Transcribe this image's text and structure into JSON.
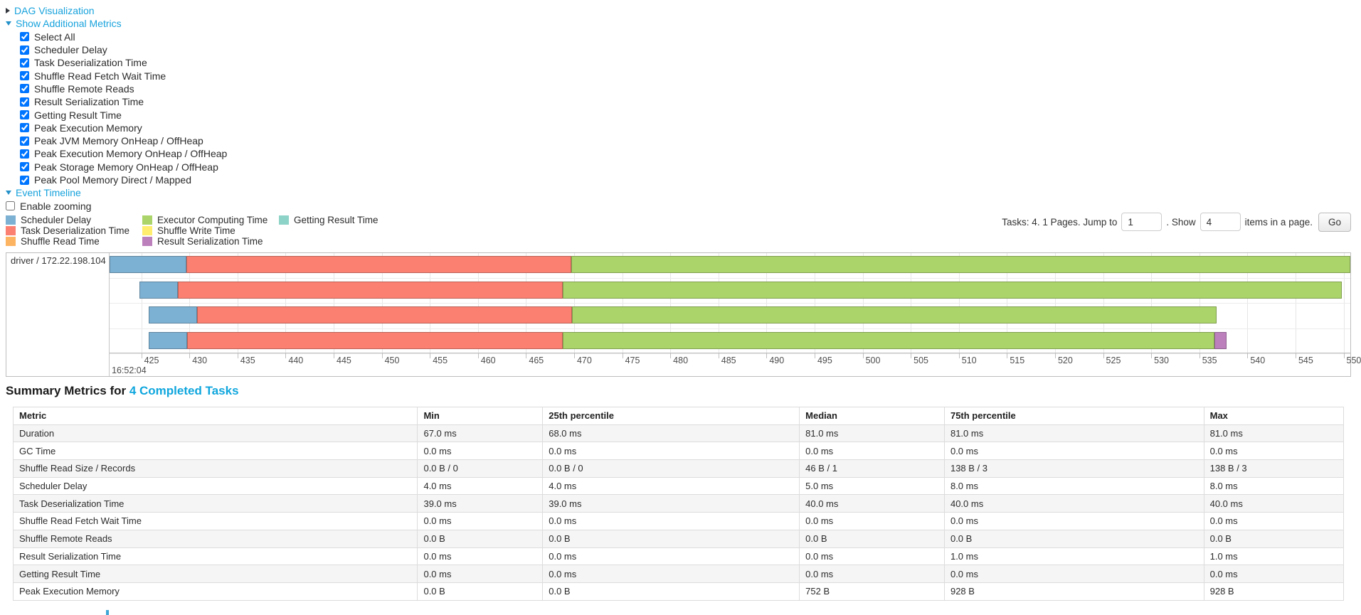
{
  "sections": {
    "dag": {
      "label": "DAG Visualization",
      "state": "collapsed"
    },
    "additional_metrics": {
      "label": "Show Additional Metrics",
      "state": "expanded",
      "checkboxes": [
        {
          "label": "Select All",
          "checked": true
        },
        {
          "label": "Scheduler Delay",
          "checked": true
        },
        {
          "label": "Task Deserialization Time",
          "checked": true
        },
        {
          "label": "Shuffle Read Fetch Wait Time",
          "checked": true
        },
        {
          "label": "Shuffle Remote Reads",
          "checked": true
        },
        {
          "label": "Result Serialization Time",
          "checked": true
        },
        {
          "label": "Getting Result Time",
          "checked": true
        },
        {
          "label": "Peak Execution Memory",
          "checked": true
        },
        {
          "label": "Peak JVM Memory OnHeap / OffHeap",
          "checked": true
        },
        {
          "label": "Peak Execution Memory OnHeap / OffHeap",
          "checked": true
        },
        {
          "label": "Peak Storage Memory OnHeap / OffHeap",
          "checked": true
        },
        {
          "label": "Peak Pool Memory Direct / Mapped",
          "checked": true
        }
      ]
    },
    "event_timeline": {
      "label": "Event Timeline",
      "state": "expanded",
      "enable_zooming": {
        "label": "Enable zooming",
        "checked": false
      }
    }
  },
  "legend": {
    "columns": [
      [
        {
          "label": "Scheduler Delay",
          "key": "scheduler_delay"
        },
        {
          "label": "Task Deserialization Time",
          "key": "task_deserialization"
        },
        {
          "label": "Shuffle Read Time",
          "key": "shuffle_read"
        }
      ],
      [
        {
          "label": "Executor Computing Time",
          "key": "executor_computing"
        },
        {
          "label": "Shuffle Write Time",
          "key": "shuffle_write"
        },
        {
          "label": "Result Serialization Time",
          "key": "result_serialization"
        }
      ],
      [
        {
          "label": "Getting Result Time",
          "key": "getting_result"
        }
      ]
    ]
  },
  "pagination": {
    "summary_text": "Tasks: 4. 1 Pages. Jump to",
    "jump_value": "1",
    "show_label": ". Show",
    "show_value": "4",
    "suffix_text": "items in a page.",
    "go_label": "Go"
  },
  "chart_data": {
    "type": "timeline",
    "group_label": "driver / 172.22.198.104",
    "time_of_day": "16:52:04",
    "x_unit": "ms within second 16:52:04",
    "x_domain": [
      421.7,
      550.7
    ],
    "tick_start": 425,
    "tick_end": 550,
    "tick_step": 5,
    "colors": {
      "scheduler_delay": "#7DB1D3",
      "task_deserialization": "#FB8072",
      "shuffle_read": "#FDB462",
      "executor_computing": "#ABD56A",
      "shuffle_write": "#FFED6F",
      "result_serialization": "#BC80BD",
      "getting_result": "#8DD3C7"
    },
    "tasks": [
      {
        "start": 421.7,
        "segments": [
          [
            "scheduler_delay",
            8.0
          ],
          [
            "task_deserialization",
            40.0
          ],
          [
            "executor_computing",
            81.0
          ]
        ]
      },
      {
        "start": 424.8,
        "segments": [
          [
            "scheduler_delay",
            4.0
          ],
          [
            "task_deserialization",
            40.0
          ],
          [
            "executor_computing",
            81.0
          ]
        ]
      },
      {
        "start": 425.8,
        "segments": [
          [
            "scheduler_delay",
            5.0
          ],
          [
            "task_deserialization",
            39.0
          ],
          [
            "executor_computing",
            67.0
          ]
        ]
      },
      {
        "start": 425.8,
        "segments": [
          [
            "scheduler_delay",
            4.0
          ],
          [
            "task_deserialization",
            39.0
          ],
          [
            "executor_computing",
            67.8
          ],
          [
            "result_serialization",
            1.2
          ]
        ]
      }
    ]
  },
  "summary_metrics": {
    "heading_prefix": "Summary Metrics for ",
    "heading_link": "4 Completed Tasks",
    "headers": [
      "Metric",
      "Min",
      "25th percentile",
      "Median",
      "75th percentile",
      "Max"
    ],
    "rows": [
      [
        "Duration",
        "67.0 ms",
        "68.0 ms",
        "81.0 ms",
        "81.0 ms",
        "81.0 ms"
      ],
      [
        "GC Time",
        "0.0 ms",
        "0.0 ms",
        "0.0 ms",
        "0.0 ms",
        "0.0 ms"
      ],
      [
        "Shuffle Read Size / Records",
        "0.0 B / 0",
        "0.0 B / 0",
        "46 B / 1",
        "138 B / 3",
        "138 B / 3"
      ],
      [
        "Scheduler Delay",
        "4.0 ms",
        "4.0 ms",
        "5.0 ms",
        "8.0 ms",
        "8.0 ms"
      ],
      [
        "Task Deserialization Time",
        "39.0 ms",
        "39.0 ms",
        "40.0 ms",
        "40.0 ms",
        "40.0 ms"
      ],
      [
        "Shuffle Read Fetch Wait Time",
        "0.0 ms",
        "0.0 ms",
        "0.0 ms",
        "0.0 ms",
        "0.0 ms"
      ],
      [
        "Shuffle Remote Reads",
        "0.0 B",
        "0.0 B",
        "0.0 B",
        "0.0 B",
        "0.0 B"
      ],
      [
        "Result Serialization Time",
        "0.0 ms",
        "0.0 ms",
        "0.0 ms",
        "1.0 ms",
        "1.0 ms"
      ],
      [
        "Getting Result Time",
        "0.0 ms",
        "0.0 ms",
        "0.0 ms",
        "0.0 ms",
        "0.0 ms"
      ],
      [
        "Peak Execution Memory",
        "0.0 B",
        "0.0 B",
        "752 B",
        "928 B",
        "928 B"
      ]
    ]
  }
}
